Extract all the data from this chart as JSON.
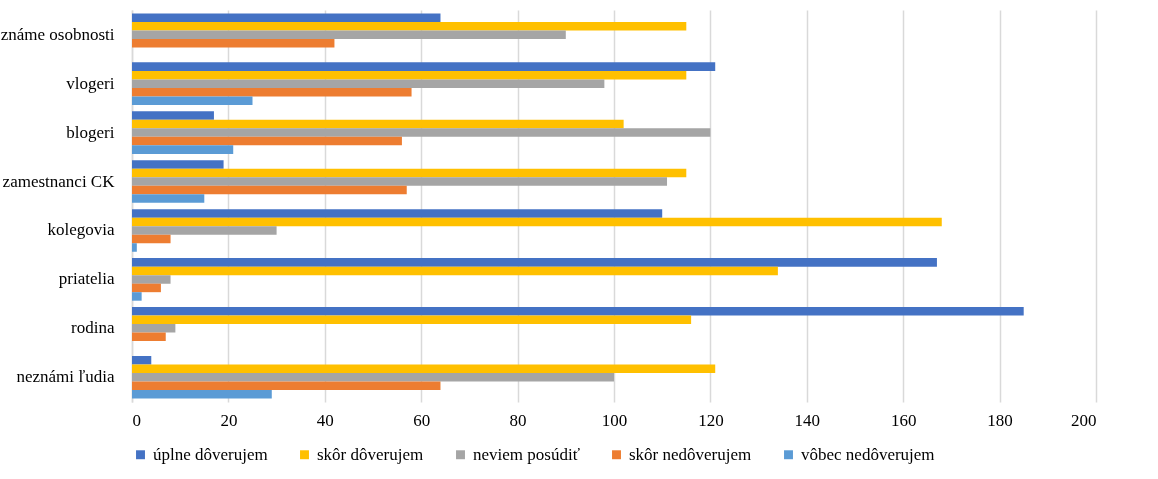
{
  "chart_data": {
    "type": "bar",
    "orientation": "horizontal",
    "categories": [
      "známe osobnosti",
      "vlogeri",
      "blogeri",
      "zamestnanci CK",
      "kolegovia",
      "priatelia",
      "rodina",
      "neznámi ľudia"
    ],
    "series": [
      {
        "name": "úplne dôverujem",
        "color": "#4472c4",
        "values": [
          64,
          121,
          17,
          19,
          110,
          167,
          185,
          4
        ]
      },
      {
        "name": "skôr dôverujem",
        "color": "#ffc000",
        "values": [
          115,
          115,
          102,
          115,
          168,
          134,
          116,
          121
        ]
      },
      {
        "name": "neviem posúdiť",
        "color": "#a5a5a5",
        "values": [
          90,
          98,
          120,
          111,
          30,
          8,
          9,
          100
        ]
      },
      {
        "name": "skôr nedôverujem",
        "color": "#ed7d31",
        "values": [
          42,
          58,
          56,
          57,
          8,
          6,
          7,
          64
        ]
      },
      {
        "name": "vôbec nedôverujem",
        "color": "#5b9bd5",
        "values": [
          0,
          25,
          21,
          15,
          1,
          2,
          0,
          29
        ]
      }
    ],
    "xlim": [
      0,
      200
    ],
    "xticks": [
      0,
      20,
      40,
      60,
      80,
      100,
      120,
      140,
      160,
      180,
      200
    ],
    "grid": "x",
    "legend": "bottom"
  }
}
